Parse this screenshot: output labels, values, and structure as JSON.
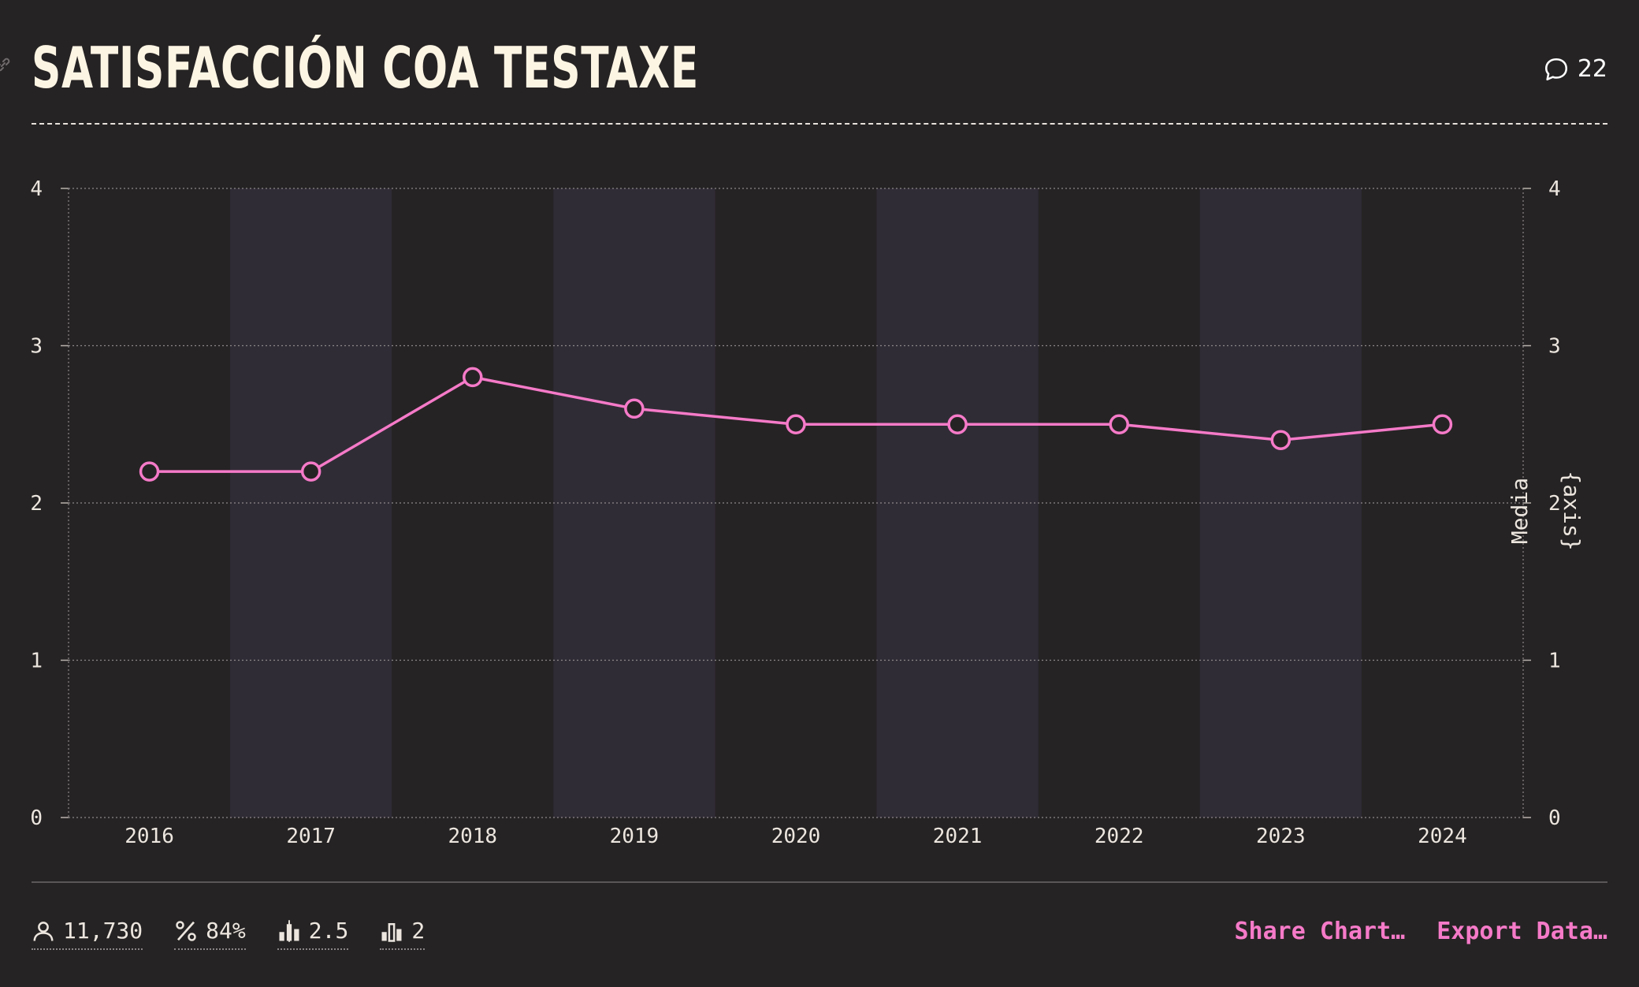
{
  "header": {
    "title": "SATISFACCIÓN COA TESTAXE",
    "comment_count": "22",
    "comment_icon": "speech-bubble-icon",
    "link_icon": "link-icon"
  },
  "stats": [
    {
      "icon": "person-icon",
      "value": "11,730"
    },
    {
      "icon": "percent-icon",
      "value": "84%"
    },
    {
      "icon": "bar-median-icon",
      "value": "2.5"
    },
    {
      "icon": "bar-mode-icon",
      "value": "2"
    }
  ],
  "actions": {
    "share_label": "Share Chart…",
    "export_label": "Export Data…"
  },
  "colors": {
    "background": "#262324",
    "band": "#302c36",
    "line": "#f57ac8",
    "title": "#fdf5e4"
  },
  "chart_data": {
    "type": "line",
    "title": "SATISFACCIÓN COA TESTAXE",
    "categories": [
      "2016",
      "2017",
      "2018",
      "2019",
      "2020",
      "2021",
      "2022",
      "2023",
      "2024"
    ],
    "series": [
      {
        "values": [
          2.2,
          2.2,
          2.8,
          2.6,
          2.5,
          2.5,
          2.5,
          2.4,
          2.5
        ]
      }
    ],
    "ylim": [
      0,
      4
    ],
    "yticks": [
      0,
      1,
      2,
      3,
      4
    ],
    "ylabel_right": "Media",
    "ylabel_right_2": "{axis}",
    "grid": true,
    "alternating_bands": true
  }
}
